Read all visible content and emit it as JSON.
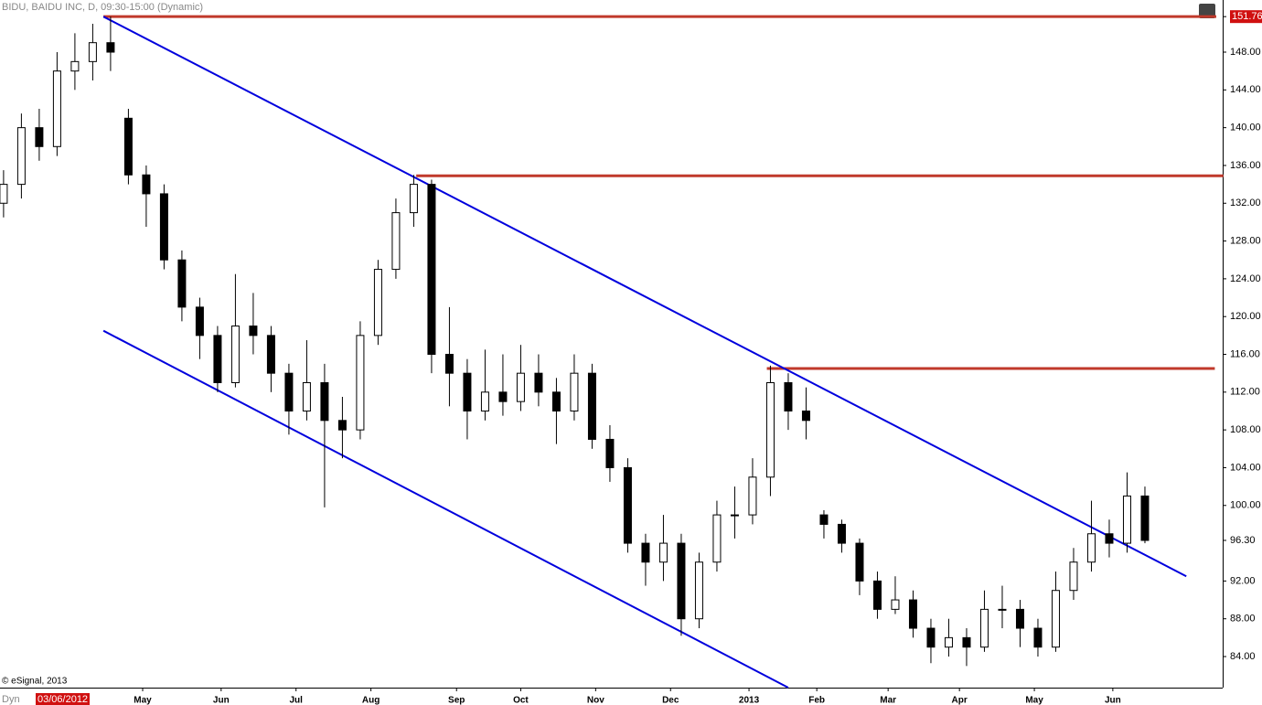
{
  "chart_data": {
    "type": "candlestick",
    "title": "BIDU, BAIDU INC, D, 09:30-15:00 (Dynamic)",
    "credit": "© eSignal, 2013",
    "mode_label": "Dyn",
    "start_date": "03/06/2012",
    "x": [
      1,
      6,
      11,
      16,
      21,
      26,
      31,
      36,
      41,
      46,
      51,
      56,
      61,
      66,
      71,
      76,
      81,
      86,
      91,
      96,
      101,
      106,
      111,
      116,
      121,
      126,
      131,
      136,
      141,
      146,
      151,
      156,
      161,
      166,
      171,
      176,
      181,
      186,
      191,
      196,
      201,
      206,
      211,
      216,
      221,
      226,
      231,
      236,
      241,
      246,
      251,
      256,
      261,
      266,
      271,
      276,
      281,
      286,
      291,
      296,
      301,
      306,
      311,
      316,
      321
    ],
    "open": [
      132,
      134,
      140,
      138,
      146,
      147,
      149,
      141,
      135,
      133,
      126,
      121,
      118,
      113,
      119,
      118,
      114,
      110,
      113,
      109,
      108,
      118,
      125,
      131,
      134,
      116,
      114,
      110,
      112,
      111,
      114,
      112,
      110,
      114,
      107,
      104,
      96,
      94,
      96,
      88,
      94,
      99,
      99,
      103,
      113,
      110,
      99,
      98,
      96,
      92,
      89,
      90,
      87,
      85,
      86,
      85,
      89,
      89,
      87,
      85,
      91,
      94,
      97,
      96,
      101
    ],
    "high": [
      135.5,
      141.5,
      142,
      148,
      150,
      151,
      151.76,
      142,
      136,
      134,
      127,
      122,
      119,
      124.5,
      122.5,
      119,
      115,
      117.5,
      115,
      111.5,
      119.5,
      126,
      132.5,
      135,
      134.5,
      121,
      115.5,
      116.5,
      116,
      117,
      116,
      113.5,
      116,
      115,
      108.5,
      105,
      97,
      99,
      97,
      95,
      100.5,
      102,
      105,
      114.8,
      114,
      112.5,
      99.5,
      98.5,
      96.5,
      93,
      92.5,
      91,
      88,
      88,
      87,
      91,
      91.5,
      90,
      88,
      93,
      95.5,
      100.5,
      98.5,
      103.5,
      102
    ],
    "low": [
      130.5,
      132.5,
      136.5,
      137,
      144,
      145,
      146,
      134,
      129.5,
      125,
      119.5,
      115.5,
      112,
      112.5,
      116,
      112,
      107.5,
      109,
      99.8,
      105,
      107,
      117,
      124,
      129.5,
      114,
      110.5,
      107,
      109,
      109.5,
      110,
      110.5,
      106.5,
      109,
      106,
      102.5,
      95,
      91.5,
      92,
      86.2,
      87,
      93,
      96.5,
      98,
      101,
      108,
      107,
      96.5,
      95,
      90.5,
      88,
      88.5,
      86,
      83.3,
      84,
      83,
      84.5,
      87,
      85,
      84,
      84.5,
      90,
      93,
      94.5,
      95,
      96
    ],
    "close": [
      134,
      140,
      138,
      146,
      147,
      149,
      148,
      135,
      133,
      126,
      121,
      118,
      113,
      119,
      118,
      114,
      110,
      113,
      109,
      108,
      118,
      125,
      131,
      134,
      116,
      114,
      110,
      112,
      111,
      114,
      112,
      110,
      114,
      107,
      104,
      96,
      94,
      96,
      88,
      94,
      99,
      99,
      103,
      113,
      110,
      109,
      98,
      96,
      92,
      89,
      90,
      87,
      85,
      86,
      85,
      89,
      89,
      87,
      85,
      91,
      94,
      97,
      96,
      101,
      96.3
    ],
    "xlim": [
      0,
      342.8
    ],
    "ylim": [
      80.71,
      153.52
    ],
    "xticks": [
      {
        "value": 40,
        "label": "May"
      },
      {
        "value": 62,
        "label": "Jun"
      },
      {
        "value": 83,
        "label": "Jul"
      },
      {
        "value": 104,
        "label": "Aug"
      },
      {
        "value": 128,
        "label": "Sep"
      },
      {
        "value": 146,
        "label": "Oct"
      },
      {
        "value": 167,
        "label": "Nov"
      },
      {
        "value": 188,
        "label": "Dec"
      },
      {
        "value": 210,
        "label": "2013"
      },
      {
        "value": 229,
        "label": "Feb"
      },
      {
        "value": 249,
        "label": "Mar"
      },
      {
        "value": 269,
        "label": "Apr"
      },
      {
        "value": 290,
        "label": "May"
      },
      {
        "value": 312,
        "label": "Jun"
      }
    ],
    "yticks": [
      {
        "value": 84,
        "label": "84.00"
      },
      {
        "value": 88,
        "label": "88.00"
      },
      {
        "value": 92,
        "label": "92.00"
      },
      {
        "value": 96.3,
        "label": "96.30"
      },
      {
        "value": 100,
        "label": "100.00"
      },
      {
        "value": 104,
        "label": "104.00"
      },
      {
        "value": 108,
        "label": "108.00"
      },
      {
        "value": 112,
        "label": "112.00"
      },
      {
        "value": 116,
        "label": "116.00"
      },
      {
        "value": 120,
        "label": "120.00"
      },
      {
        "value": 124,
        "label": "124.00"
      },
      {
        "value": 128,
        "label": "128.00"
      },
      {
        "value": 132,
        "label": "132.00"
      },
      {
        "value": 136,
        "label": "136.00"
      },
      {
        "value": 140,
        "label": "140.00"
      },
      {
        "value": 144,
        "label": "144.00"
      },
      {
        "value": 148,
        "label": "148.00"
      },
      {
        "value": 151.76,
        "label": "151.76"
      }
    ],
    "trendlines": [
      {
        "color": "#0000dd",
        "x": [
          29,
          332.6
        ],
        "y": [
          151.76,
          92.5
        ]
      },
      {
        "color": "#0000dd",
        "x": [
          29,
          221
        ],
        "y": [
          118.5,
          80.71
        ]
      }
    ],
    "levels": [
      {
        "color": "#c0392b",
        "x": [
          29,
          341
        ],
        "y": 151.76
      },
      {
        "color": "#c0392b",
        "x": [
          116.7,
          343
        ],
        "y": 134.9
      },
      {
        "color": "#c0392b",
        "x": [
          215,
          340.6
        ],
        "y": 114.5
      }
    ]
  }
}
